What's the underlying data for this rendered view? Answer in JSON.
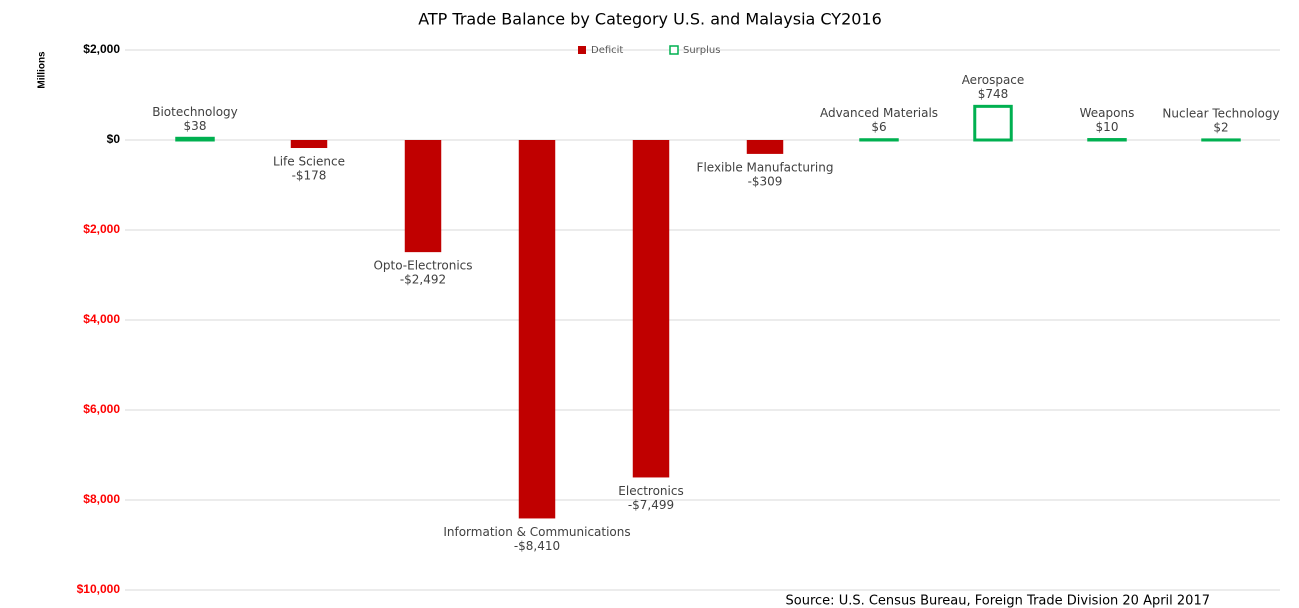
{
  "chart_data": {
    "type": "bar",
    "title": "ATP Trade Balance by Category U.S. and Malaysia CY2016",
    "y_axis_label": "Millions",
    "source": "Source: U.S. Census Bureau, Foreign Trade Division 20 April 2017",
    "categories": [
      "Biotechnology",
      "Life Science",
      "Opto-Electronics",
      "Information & Communications",
      "Electronics",
      "Flexible Manufacturing",
      "Advanced Materials",
      "Aerospace",
      "Weapons",
      "Nuclear Technology"
    ],
    "series": [
      {
        "name": "Deficit",
        "color": "#c00000",
        "style": "fill",
        "values": [
          null,
          -178,
          -2492,
          -8410,
          -7499,
          -309,
          null,
          null,
          null,
          null
        ],
        "value_labels": [
          null,
          "-$178",
          "-$2,492",
          "-$8,410",
          "-$7,499",
          "-$309",
          null,
          null,
          null,
          null
        ]
      },
      {
        "name": "Surplus",
        "color": "#00b050",
        "style": "outline",
        "values": [
          38,
          null,
          null,
          null,
          null,
          null,
          6,
          748,
          10,
          2
        ],
        "value_labels": [
          "$38",
          null,
          null,
          null,
          null,
          null,
          "$6",
          "$748",
          "$10",
          "$2"
        ]
      }
    ],
    "ylim": [
      -10000,
      2000
    ],
    "yticks": [
      {
        "value": 2000,
        "label": "$2,000"
      },
      {
        "value": 0,
        "label": "$0"
      },
      {
        "value": -2000,
        "label": "$2,000"
      },
      {
        "value": -4000,
        "label": "$4,000"
      },
      {
        "value": -6000,
        "label": "$6,000"
      },
      {
        "value": -8000,
        "label": "$8,000"
      },
      {
        "value": -10000,
        "label": "$10,000"
      }
    ],
    "negative_tick_color": "#ff0000",
    "grid": true,
    "legend": "top"
  }
}
